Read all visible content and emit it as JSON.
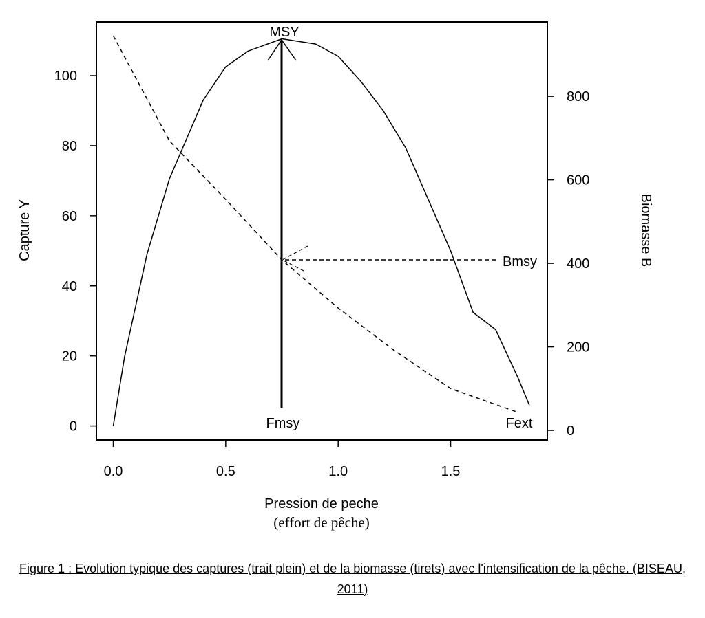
{
  "chart_data": {
    "type": "line",
    "y_label": "Capture Y",
    "y2_label": "Biomasse B",
    "x_label": "Pression de peche",
    "x_sublabel": "(effort de pêche)",
    "caption": "Figure 1 : Evolution typique des captures (trait plein) et de la biomasse (tirets) avec l'intensification de la pêche. (BISEAU, 2011)",
    "annotations": [
      "MSY",
      "Fmsy",
      "Fext",
      "Bmsy"
    ],
    "xlim": [
      -0.075,
      1.93
    ],
    "ylim": [
      -4,
      115.3
    ],
    "y2lim": [
      -23,
      978
    ],
    "xticks": [
      {
        "value": 0,
        "label": "0.0"
      },
      0.5,
      {
        "value": 1,
        "label": "1.0"
      },
      1.5
    ],
    "yticks": [
      0,
      20,
      40,
      60,
      80,
      100
    ],
    "y2ticks": [
      0,
      200,
      400,
      600,
      800
    ],
    "series": [
      {
        "color": "#000000",
        "line_style": "solid",
        "axis": "y",
        "x": [
          0,
          0.05,
          0.15,
          0.25,
          0.4,
          0.5,
          0.6,
          0.75,
          0.9,
          1.0,
          1.1,
          1.2,
          1.3,
          1.4,
          1.5,
          1.6,
          1.7,
          1.8,
          1.85
        ],
        "values": [
          0,
          19.6,
          49,
          70.6,
          93,
          102.5,
          107,
          110.5,
          109,
          105.5,
          98.4,
          90,
          79.4,
          64.7,
          50,
          32.4,
          27.5,
          13.7,
          5.9
        ]
      },
      {
        "color": "#000000",
        "line_style": "dashed",
        "axis": "y2",
        "x": [
          0,
          0.25,
          0.5,
          0.75,
          1.0,
          1.25,
          1.5,
          1.8
        ],
        "values": [
          945,
          693,
          553,
          408,
          293,
          191,
          100,
          43
        ]
      }
    ]
  }
}
